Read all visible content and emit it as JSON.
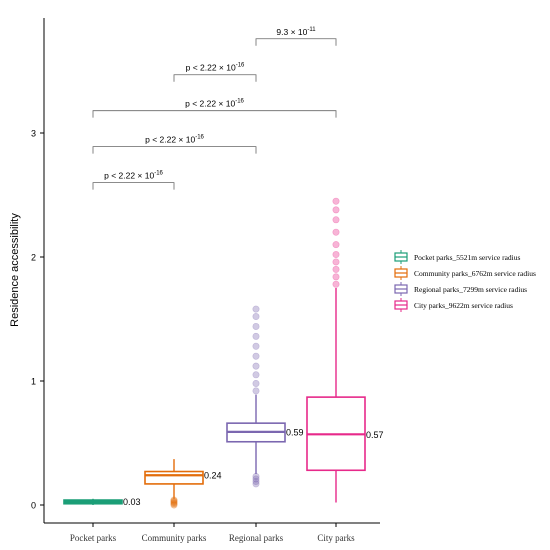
{
  "chart_data": {
    "type": "box",
    "title": "",
    "xlabel": "",
    "ylabel": "Residence accessibility",
    "ylim": [
      -0.1,
      3.9
    ],
    "yticks": [
      0,
      1,
      2,
      3
    ],
    "grid": false,
    "legend_position": "right",
    "categories": [
      "Pocket parks",
      "Community parks",
      "Regional parks",
      "City parks"
    ],
    "series": [
      {
        "name": "Pocket parks_5521m service radius",
        "color": "#1b9e77",
        "box": {
          "whisker_low": 0.0,
          "q1": 0.01,
          "median": 0.03,
          "q3": 0.04,
          "whisker_high": 0.05
        },
        "outliers_low": [],
        "outliers_high": [],
        "median_label": "0.03"
      },
      {
        "name": "Community parks_6762m service radius",
        "color": "#e36c09",
        "box": {
          "whisker_low": 0.05,
          "q1": 0.17,
          "median": 0.24,
          "q3": 0.27,
          "whisker_high": 0.37
        },
        "outliers_low": [
          0.0,
          0.01,
          0.02,
          0.03,
          0.04
        ],
        "outliers_high": [],
        "median_label": "0.24"
      },
      {
        "name": "Regional parks_7299m service radius",
        "color": "#7b67b0",
        "box": {
          "whisker_low": 0.25,
          "q1": 0.51,
          "median": 0.59,
          "q3": 0.66,
          "whisker_high": 0.89
        },
        "outliers_low": [
          0.17,
          0.19,
          0.21,
          0.23
        ],
        "outliers_high": [
          0.92,
          0.98,
          1.05,
          1.12,
          1.2,
          1.28,
          1.36,
          1.44,
          1.52,
          1.58
        ],
        "median_label": "0.59"
      },
      {
        "name": "City parks_9622m service radius",
        "color": "#e7298a",
        "box": {
          "whisker_low": 0.02,
          "q1": 0.28,
          "median": 0.57,
          "q3": 0.87,
          "whisker_high": 1.75
        },
        "outliers_low": [],
        "outliers_high": [
          1.78,
          1.84,
          1.9,
          1.96,
          2.02,
          2.1,
          2.2,
          2.3,
          2.38,
          2.45
        ],
        "median_label": "0.57"
      }
    ],
    "comparisons": [
      {
        "from": 0,
        "to": 1,
        "y": 2.6,
        "label_main": "p < 2.22 × 10",
        "label_exp": "-16"
      },
      {
        "from": 0,
        "to": 2,
        "y": 2.89,
        "label_main": "p < 2.22 × 10",
        "label_exp": "-16"
      },
      {
        "from": 0,
        "to": 3,
        "y": 3.18,
        "label_main": "p < 2.22 × 10",
        "label_exp": "-16"
      },
      {
        "from": 1,
        "to": 2,
        "y": 3.47,
        "label_main": "p < 2.22 × 10",
        "label_exp": "-16"
      },
      {
        "from": 2,
        "to": 3,
        "y": 3.76,
        "label_main": "9.3 × 10",
        "label_exp": "-11"
      }
    ]
  }
}
